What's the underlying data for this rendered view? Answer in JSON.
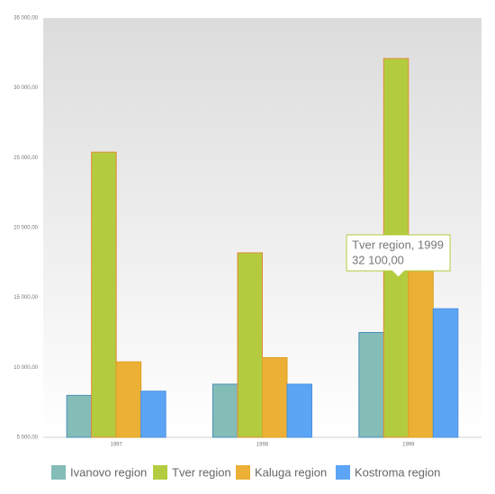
{
  "chart_data": {
    "type": "bar",
    "categories": [
      "1997",
      "1998",
      "1999"
    ],
    "series": [
      {
        "name": "Ivanovo region",
        "color": "#84bcb8",
        "values": [
          8000,
          8800,
          12500
        ]
      },
      {
        "name": "Tver region",
        "color": "#b3cc3f",
        "values": [
          25400,
          18200,
          32100
        ]
      },
      {
        "name": "Kaluga region",
        "color": "#ebb035",
        "values": [
          10400,
          10700,
          17200
        ]
      },
      {
        "name": "Kostroma region",
        "color": "#5ca5f5",
        "values": [
          8300,
          8800,
          14200
        ]
      }
    ],
    "ylim": [
      5000,
      35000
    ],
    "yticks": [
      {
        "value": 5000,
        "label": "5 000,00"
      },
      {
        "value": 10000,
        "label": "10 000,00"
      },
      {
        "value": 15000,
        "label": "15 000,00"
      },
      {
        "value": 20000,
        "label": "20 000,00"
      },
      {
        "value": 25000,
        "label": "25 000,00"
      },
      {
        "value": 30000,
        "label": "30 000,00"
      },
      {
        "value": 35000,
        "label": "35 000,00"
      }
    ],
    "legend": "bottom",
    "tooltip": {
      "title": "Tver region, 1999",
      "value_label": "32 100,00"
    }
  }
}
